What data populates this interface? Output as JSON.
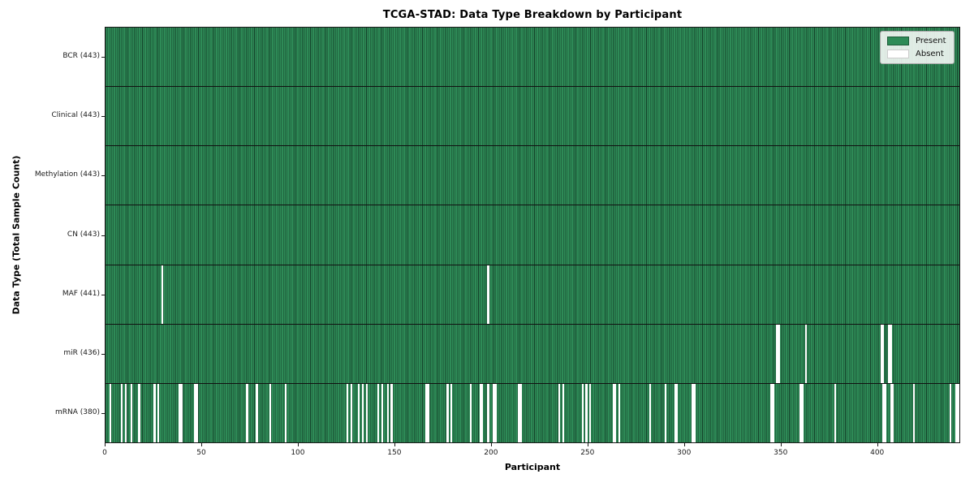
{
  "chart_data": {
    "type": "heatmap",
    "title": "TCGA-STAD: Data Type Breakdown by Participant",
    "xlabel": "Participant",
    "ylabel": "Data Type (Total Sample Count)",
    "n_participants": 443,
    "x_ticks": [
      0,
      50,
      100,
      150,
      200,
      250,
      300,
      350,
      400
    ],
    "grid": false,
    "legend": {
      "position": "upper right",
      "entries": [
        {
          "label": "Present",
          "color": "#2e8b57",
          "border": "#1d5c39"
        },
        {
          "label": "Absent",
          "color": "#ffffff",
          "border": "#cccccc"
        }
      ]
    },
    "colors": {
      "present_fill": "#2e8b57",
      "bar_edge": "#14422a",
      "absent": "#ffffff",
      "row_divider": "#111111",
      "spine": "#1a1a1a"
    },
    "rows": [
      {
        "name": "bcr",
        "label": "BCR (443)",
        "present_count": 443,
        "absent_participants": []
      },
      {
        "name": "clinical",
        "label": "Clinical (443)",
        "present_count": 443,
        "absent_participants": []
      },
      {
        "name": "methylation",
        "label": "Methylation (443)",
        "present_count": 443,
        "absent_participants": []
      },
      {
        "name": "cn",
        "label": "CN (443)",
        "present_count": 443,
        "absent_participants": []
      },
      {
        "name": "maf",
        "label": "MAF (441)",
        "present_count": 441,
        "absent_participants": [
          29,
          198
        ]
      },
      {
        "name": "mir",
        "label": "miR (436)",
        "present_count": 436,
        "absent_participants": [
          348,
          349,
          363,
          402,
          403,
          406,
          407
        ]
      },
      {
        "name": "mrna",
        "label": "mRNA (380)",
        "present_count": 380,
        "absent_participants": [
          2,
          8,
          10,
          13,
          17,
          25,
          27,
          38,
          39,
          46,
          47,
          73,
          78,
          85,
          93,
          125,
          127,
          131,
          133,
          135,
          141,
          143,
          146,
          148,
          166,
          167,
          177,
          179,
          189,
          194,
          195,
          198,
          201,
          202,
          214,
          215,
          235,
          237,
          247,
          249,
          251,
          263,
          264,
          266,
          282,
          290,
          295,
          296,
          304,
          305,
          345,
          346,
          360,
          361,
          378,
          403,
          404,
          407,
          408,
          419,
          438,
          441,
          442
        ]
      }
    ]
  }
}
